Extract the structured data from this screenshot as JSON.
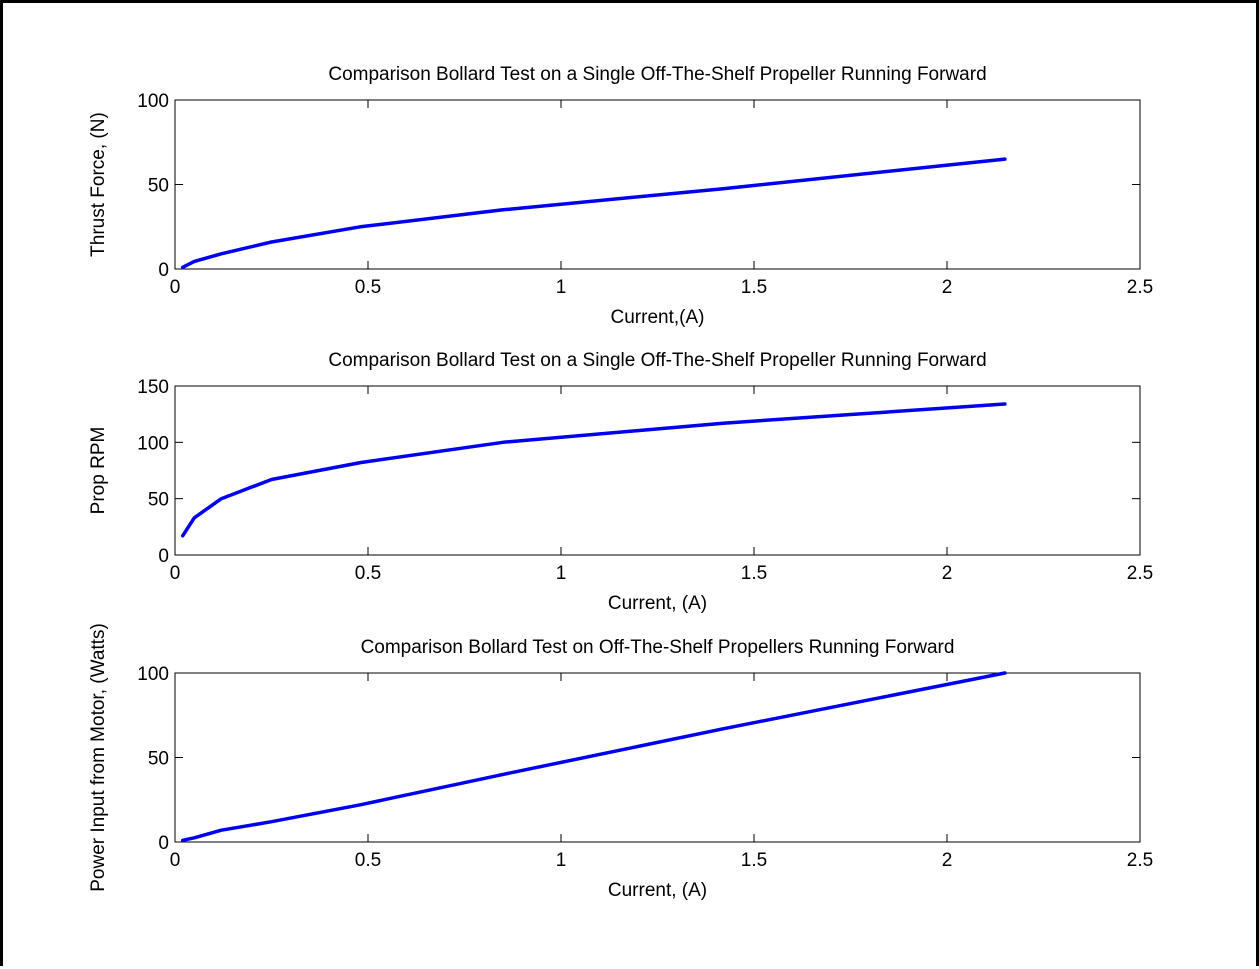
{
  "line_color": "#0000ee",
  "frame_color": "#000000",
  "chart_data": [
    {
      "type": "line",
      "title": "Comparison Bollard Test on a Single Off-The-Shelf Propeller Running Forward",
      "xlabel": "Current,(A)",
      "ylabel": "Thrust Force, (N)",
      "xlim": [
        0,
        2.5
      ],
      "ylim": [
        0,
        100
      ],
      "xticks": [
        0,
        0.5,
        1,
        1.5,
        2,
        2.5
      ],
      "xtick_labels": [
        "0",
        "0.5",
        "1",
        "1.5",
        "2",
        "2.5"
      ],
      "yticks": [
        0,
        50,
        100
      ],
      "ytick_labels": [
        "0",
        "50",
        "100"
      ],
      "grid": false,
      "x": [
        0.02,
        0.05,
        0.12,
        0.25,
        0.48,
        0.85,
        1.42,
        2.15
      ],
      "y": [
        1,
        4.5,
        9,
        16,
        25,
        35,
        47.5,
        65
      ]
    },
    {
      "type": "line",
      "title": "Comparison Bollard Test on a Single Off-The-Shelf Propeller Running Forward",
      "xlabel": "Current, (A)",
      "ylabel": "Prop RPM",
      "xlim": [
        0,
        2.5
      ],
      "ylim": [
        0,
        150
      ],
      "xticks": [
        0,
        0.5,
        1,
        1.5,
        2,
        2.5
      ],
      "xtick_labels": [
        "0",
        "0.5",
        "1",
        "1.5",
        "2",
        "2.5"
      ],
      "yticks": [
        0,
        50,
        100,
        150
      ],
      "ytick_labels": [
        "0",
        "50",
        "100",
        "150"
      ],
      "grid": false,
      "x": [
        0.02,
        0.05,
        0.12,
        0.25,
        0.48,
        0.85,
        1.42,
        2.15
      ],
      "y": [
        17,
        33,
        50,
        67,
        82,
        100,
        117,
        134
      ]
    },
    {
      "type": "line",
      "title": "Comparison Bollard Test on Off-The-Shelf Propellers Running Forward",
      "xlabel": "Current, (A)",
      "ylabel": "Power Input from Motor, (Watts)",
      "xlim": [
        0,
        2.5
      ],
      "ylim": [
        0,
        100
      ],
      "xticks": [
        0,
        0.5,
        1,
        1.5,
        2,
        2.5
      ],
      "xtick_labels": [
        "0",
        "0.5",
        "1",
        "1.5",
        "2",
        "2.5"
      ],
      "yticks": [
        0,
        50,
        100
      ],
      "ytick_labels": [
        "0",
        "50",
        "100"
      ],
      "grid": false,
      "x": [
        0.02,
        0.05,
        0.12,
        0.25,
        0.48,
        0.85,
        1.42,
        2.15
      ],
      "y": [
        1,
        2.5,
        7,
        12,
        22,
        40,
        67,
        100
      ]
    }
  ]
}
